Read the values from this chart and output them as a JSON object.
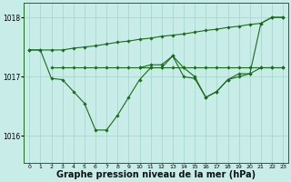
{
  "background_color": "#c8ede8",
  "grid_color": "#a8d8cc",
  "line_color": "#1a6b1a",
  "marker_color": "#1a6b1a",
  "xlabel": "Graphe pression niveau de la mer (hPa)",
  "xlabel_fontsize": 7,
  "ylabel_ticks": [
    1016,
    1017,
    1018
  ],
  "xticks": [
    0,
    1,
    2,
    3,
    4,
    5,
    6,
    7,
    8,
    9,
    10,
    11,
    12,
    13,
    14,
    15,
    16,
    17,
    18,
    19,
    20,
    21,
    22,
    23
  ],
  "xlim": [
    -0.5,
    23.5
  ],
  "ylim": [
    1015.55,
    1018.25
  ],
  "series": [
    {
      "x": [
        0,
        1,
        2,
        3,
        4,
        5,
        6,
        7,
        8,
        9,
        10,
        11,
        12,
        13,
        14,
        15,
        16,
        17,
        18,
        19,
        20,
        21,
        22,
        23
      ],
      "y": [
        1017.45,
        1017.45,
        1016.97,
        1016.95,
        1016.75,
        1016.55,
        1016.1,
        1016.1,
        1016.35,
        1016.65,
        1016.95,
        1017.15,
        1017.15,
        1017.35,
        1017.15,
        1017.0,
        1016.65,
        1016.75,
        1016.95,
        1017.0,
        1017.05,
        1017.9,
        1018.0,
        1018.0
      ]
    },
    {
      "x": [
        0,
        1,
        2,
        3,
        4,
        5,
        6,
        7,
        8,
        9,
        10,
        11,
        12,
        13,
        14,
        15,
        16,
        17,
        18,
        19,
        20,
        21,
        22,
        23
      ],
      "y": [
        1017.45,
        1017.45,
        1017.45,
        1017.45,
        1017.48,
        1017.5,
        1017.52,
        1017.55,
        1017.58,
        1017.6,
        1017.63,
        1017.65,
        1017.68,
        1017.7,
        1017.72,
        1017.75,
        1017.78,
        1017.8,
        1017.83,
        1017.85,
        1017.88,
        1017.9,
        1018.0,
        1018.0
      ]
    },
    {
      "x": [
        2,
        3,
        4,
        5,
        6,
        7,
        8,
        9,
        10,
        11,
        12,
        13,
        14,
        15,
        16,
        17,
        18,
        19,
        20,
        21,
        22,
        23
      ],
      "y": [
        1017.15,
        1017.15,
        1017.15,
        1017.15,
        1017.15,
        1017.15,
        1017.15,
        1017.15,
        1017.15,
        1017.15,
        1017.15,
        1017.15,
        1017.15,
        1017.15,
        1017.15,
        1017.15,
        1017.15,
        1017.15,
        1017.15,
        1017.15,
        1017.15,
        1017.15
      ]
    },
    {
      "x": [
        10,
        11,
        12,
        13,
        14,
        15,
        16,
        17,
        18,
        19,
        20,
        21,
        22,
        23
      ],
      "y": [
        1017.15,
        1017.2,
        1017.2,
        1017.35,
        1017.0,
        1016.97,
        1016.65,
        1016.75,
        1016.95,
        1017.05,
        1017.05,
        1017.15,
        1017.15,
        1017.15
      ]
    }
  ]
}
